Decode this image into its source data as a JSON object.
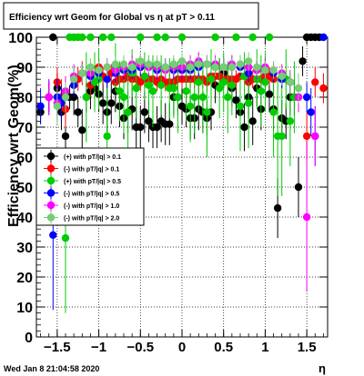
{
  "chart_data": {
    "type": "scatter",
    "title": "Efficiency wrt Geom for Global vs   η at pT > 0.11",
    "xlabel": "η",
    "ylabel": "Efficiency wrt  Geom(%)",
    "xlim": [
      -1.75,
      1.75
    ],
    "ylim": [
      0,
      100
    ],
    "x_ticks": [
      -1.5,
      -1,
      -0.5,
      0,
      0.5,
      1,
      1.5
    ],
    "x_tick_labels": [
      "−1.5",
      "−1",
      "−0.5",
      "0",
      "0.5",
      "1",
      "1.5"
    ],
    "y_ticks": [
      0,
      10,
      20,
      30,
      40,
      50,
      60,
      70,
      80,
      90,
      100
    ],
    "y_tick_labels": [
      "0",
      "10",
      "20",
      "30",
      "40",
      "50",
      "60",
      "70",
      "80",
      "90",
      "100"
    ],
    "grid": true,
    "legend_position": "middle-left",
    "timestamp": "Wed Jan  8 21:04:58 2020",
    "series": [
      {
        "name": "(+) with pT/|q| > 0.1",
        "color": "#000000",
        "x": [
          -1.7,
          -1.6,
          -1.55,
          -1.5,
          -1.45,
          -1.4,
          -1.35,
          -1.3,
          -1.25,
          -1.2,
          -1.15,
          -1.1,
          -1.05,
          -1.0,
          -0.95,
          -0.9,
          -0.85,
          -0.8,
          -0.75,
          -0.7,
          -0.65,
          -0.6,
          -0.55,
          -0.5,
          -0.45,
          -0.4,
          -0.35,
          -0.3,
          -0.25,
          -0.2,
          -0.15,
          -0.1,
          -0.05,
          0.0,
          0.05,
          0.1,
          0.15,
          0.2,
          0.25,
          0.3,
          0.35,
          0.4,
          0.45,
          0.5,
          0.55,
          0.6,
          0.65,
          0.7,
          0.75,
          0.8,
          0.85,
          0.9,
          0.95,
          1.0,
          1.05,
          1.1,
          1.15,
          1.2,
          1.25,
          1.3,
          1.35,
          1.4,
          1.45,
          1.5,
          1.55,
          1.6,
          1.65
        ],
        "y": [
          75,
          80,
          100,
          83,
          75,
          67,
          80,
          80,
          75,
          69,
          80,
          82,
          83,
          81,
          78,
          75,
          78,
          82,
          77,
          73,
          75,
          76,
          70,
          70,
          75,
          72,
          70,
          70,
          72,
          71,
          71,
          80,
          80,
          77,
          76,
          73,
          73,
          76,
          75,
          73,
          75,
          84,
          87,
          88,
          86,
          83,
          79,
          75,
          70,
          80,
          72,
          83,
          76,
          87,
          81,
          76,
          43,
          73,
          72,
          80,
          80,
          50,
          92,
          100,
          100,
          100,
          100
        ],
        "err": [
          4,
          5,
          0,
          5,
          6,
          10,
          4,
          6,
          5,
          7,
          5,
          6,
          5,
          6,
          7,
          8,
          7,
          7,
          7,
          7,
          7,
          7,
          7,
          7,
          7,
          7,
          7,
          7,
          7,
          7,
          7,
          6,
          6,
          6,
          6,
          7,
          7,
          7,
          7,
          6,
          6,
          6,
          6,
          5,
          5,
          6,
          6,
          7,
          8,
          7,
          8,
          6,
          7,
          6,
          6,
          7,
          10,
          6,
          6,
          6,
          6,
          10,
          5,
          0,
          0,
          0,
          0
        ]
      },
      {
        "name": "(-) with pT/|q| > 0.1",
        "color": "#ff0000",
        "x": [
          -1.7,
          -1.6,
          -1.5,
          -1.45,
          -1.4,
          -1.3,
          -1.25,
          -1.2,
          -1.1,
          -1.0,
          -0.95,
          -0.9,
          -0.85,
          -0.8,
          -0.75,
          -0.7,
          -0.65,
          -0.6,
          -0.55,
          -0.5,
          -0.45,
          -0.4,
          -0.35,
          -0.3,
          -0.25,
          -0.2,
          -0.15,
          -0.1,
          -0.05,
          0.0,
          0.05,
          0.1,
          0.15,
          0.2,
          0.25,
          0.3,
          0.35,
          0.4,
          0.45,
          0.5,
          0.55,
          0.6,
          0.65,
          0.7,
          0.75,
          0.8,
          0.85,
          0.9,
          0.95,
          1.0,
          1.05,
          1.1,
          1.2,
          1.3,
          1.4,
          1.5,
          1.6,
          1.7
        ],
        "y": [
          52,
          80,
          85,
          80,
          76,
          86,
          86,
          88,
          84,
          90,
          87,
          86,
          88,
          85,
          86,
          86,
          87,
          86,
          86,
          85,
          86,
          86,
          86,
          85,
          86,
          85,
          85,
          85,
          86,
          86,
          86,
          86,
          86,
          86,
          86,
          85,
          87,
          87,
          87,
          86,
          86,
          86,
          86,
          87,
          87,
          85,
          86,
          86,
          86,
          87,
          87,
          86,
          86,
          85,
          80,
          67,
          85,
          83
        ],
        "err": [
          10,
          5,
          5,
          6,
          6,
          4,
          4,
          4,
          4,
          3,
          3,
          3,
          3,
          3,
          3,
          3,
          3,
          3,
          3,
          3,
          3,
          3,
          3,
          3,
          3,
          3,
          3,
          3,
          3,
          3,
          3,
          3,
          3,
          3,
          3,
          3,
          3,
          3,
          3,
          3,
          3,
          3,
          3,
          3,
          3,
          3,
          3,
          3,
          3,
          3,
          3,
          3,
          3,
          3,
          4,
          8,
          5,
          5
        ]
      },
      {
        "name": "(+) with pT/|q| > 0.5",
        "color": "#00cc00",
        "x": [
          -1.4,
          -1.35,
          -1.3,
          -1.25,
          -1.2,
          -1.15,
          -1.1,
          -1.05,
          -1.0,
          -0.95,
          -0.9,
          -0.85,
          -0.8,
          -0.75,
          -0.7,
          -0.65,
          -0.6,
          -0.55,
          -0.5,
          -0.45,
          -0.4,
          -0.35,
          -0.3,
          -0.25,
          -0.2,
          -0.15,
          -0.1,
          -0.05,
          0.0,
          0.05,
          0.1,
          0.15,
          0.2,
          0.25,
          0.3,
          0.35,
          0.4,
          0.45,
          0.5,
          0.55,
          0.6,
          0.65,
          0.7,
          0.75,
          0.8,
          0.85,
          0.9,
          0.95,
          1.0,
          1.05,
          1.1,
          1.15,
          1.2,
          1.25,
          1.3,
          1.35
        ],
        "y": [
          33,
          100,
          100,
          100,
          100,
          80,
          100,
          85,
          86,
          100,
          67,
          100,
          90,
          82,
          80,
          75,
          88,
          83,
          100,
          87,
          84,
          82,
          100,
          84,
          100,
          83,
          83,
          80,
          100,
          82,
          77,
          80,
          85,
          80,
          75,
          86,
          100,
          83,
          85,
          80,
          84,
          100,
          77,
          87,
          78,
          100,
          86,
          82,
          85,
          100,
          75,
          67,
          67,
          86,
          72,
          80
        ],
        "err": [
          25,
          0,
          0,
          0,
          0,
          15,
          0,
          10,
          10,
          0,
          20,
          0,
          8,
          10,
          12,
          15,
          8,
          10,
          0,
          8,
          10,
          12,
          0,
          10,
          0,
          10,
          10,
          12,
          0,
          10,
          12,
          12,
          10,
          12,
          15,
          10,
          0,
          10,
          10,
          12,
          10,
          0,
          15,
          8,
          15,
          0,
          10,
          12,
          10,
          0,
          15,
          20,
          20,
          10,
          15,
          12
        ]
      },
      {
        "name": "(-) with pT/|q| > 0.5",
        "color": "#0000ff",
        "x": [
          -1.7,
          -1.6,
          -1.55,
          -1.5,
          -1.45,
          -1.4,
          -1.3,
          -1.2,
          -1.1,
          -1.0,
          -0.9,
          -0.8,
          -0.7,
          -0.6,
          -0.5,
          -0.4,
          -0.3,
          -0.2,
          -0.1,
          0.0,
          0.1,
          0.2,
          0.3,
          0.4,
          0.5,
          0.6,
          0.7,
          0.8,
          0.9,
          1.0,
          1.1,
          1.2,
          1.3,
          1.4,
          1.5,
          1.55,
          1.6,
          1.7
        ],
        "y": [
          77,
          80,
          34,
          80,
          78,
          80,
          84,
          88,
          87,
          88,
          86,
          88,
          89,
          89,
          90,
          90,
          89,
          90,
          89,
          89,
          89,
          90,
          91,
          90,
          90,
          90,
          90,
          88,
          89,
          89,
          88,
          86,
          85,
          80,
          80,
          75,
          67,
          100
        ],
        "err": [
          6,
          6,
          25,
          6,
          6,
          5,
          4,
          3,
          3,
          3,
          3,
          3,
          3,
          3,
          3,
          3,
          3,
          3,
          3,
          3,
          3,
          3,
          3,
          3,
          3,
          3,
          3,
          3,
          3,
          3,
          3,
          3,
          4,
          5,
          5,
          8,
          10,
          0
        ]
      },
      {
        "name": "(-) with pT/|q| > 1.0",
        "color": "#ff00ff",
        "x": [
          -1.6,
          -1.5,
          -1.4,
          -1.3,
          -1.2,
          -1.1,
          -1.0,
          -0.9,
          -0.8,
          -0.7,
          -0.6,
          -0.5,
          -0.4,
          -0.3,
          -0.2,
          -0.1,
          0.0,
          0.1,
          0.2,
          0.3,
          0.4,
          0.5,
          0.6,
          0.7,
          0.8,
          0.9,
          1.0,
          1.1,
          1.2,
          1.3,
          1.4,
          1.5,
          1.6
        ],
        "y": [
          80,
          78,
          82,
          87,
          88,
          88,
          89,
          90,
          89,
          90,
          91,
          91,
          90,
          90,
          89,
          90,
          90,
          91,
          92,
          91,
          91,
          90,
          91,
          91,
          90,
          89,
          90,
          89,
          88,
          85,
          80,
          40,
          67
        ],
        "err": [
          6,
          6,
          5,
          4,
          3,
          3,
          3,
          3,
          3,
          3,
          3,
          3,
          3,
          3,
          3,
          3,
          3,
          3,
          3,
          3,
          3,
          3,
          3,
          3,
          3,
          3,
          3,
          3,
          3,
          4,
          5,
          25,
          10
        ]
      },
      {
        "name": "(-) with pT/|q| > 2.0",
        "color": "#77cc77",
        "x": [
          -1.5,
          -1.4,
          -1.3,
          -1.2,
          -1.1,
          -1.0,
          -0.9,
          -0.8,
          -0.7,
          -0.6,
          -0.5,
          -0.4,
          -0.3,
          -0.2,
          -0.1,
          0.0,
          0.1,
          0.2,
          0.3,
          0.4,
          0.5,
          0.6,
          0.7,
          0.8,
          0.9,
          1.0,
          1.1,
          1.2,
          1.3,
          1.4
        ],
        "y": [
          77,
          80,
          86,
          88,
          90,
          89,
          90,
          91,
          91,
          90,
          92,
          91,
          91,
          90,
          91,
          92,
          90,
          91,
          91,
          90,
          90,
          90,
          91,
          92,
          90,
          89,
          89,
          87,
          85,
          83
        ],
        "err": [
          6,
          5,
          4,
          3,
          3,
          3,
          3,
          3,
          3,
          3,
          3,
          3,
          3,
          3,
          3,
          3,
          3,
          3,
          3,
          3,
          3,
          3,
          3,
          3,
          3,
          3,
          3,
          3,
          4,
          5
        ]
      }
    ]
  }
}
